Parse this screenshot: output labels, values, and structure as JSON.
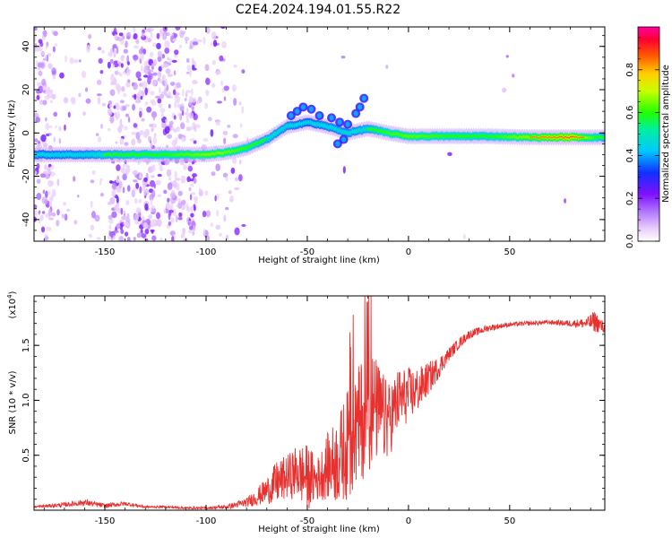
{
  "title": "C2E4.2024.194.01.55.R22",
  "colorbar": {
    "label": "Normalized spectral amplitude",
    "ticks": [
      "0.0",
      "0.2",
      "0.4",
      "0.6",
      "0.8"
    ],
    "range": [
      0,
      1
    ]
  },
  "chart_data": [
    {
      "type": "heatmap",
      "xlabel": "Height of straight line (km)",
      "ylabel": "Frequency (Hz)",
      "xlim": [
        -185,
        97
      ],
      "ylim": [
        -50,
        49
      ],
      "xticks": [
        "-150",
        "-100",
        "-50",
        "0",
        "50"
      ],
      "yticks": [
        "-40",
        "-20",
        "0",
        "20",
        "40"
      ],
      "ridge": [
        {
          "x": -185,
          "f": -10,
          "a": 0.42
        },
        {
          "x": -160,
          "f": -10,
          "a": 0.45
        },
        {
          "x": -140,
          "f": -10,
          "a": 0.55
        },
        {
          "x": -120,
          "f": -10,
          "a": 0.6
        },
        {
          "x": -100,
          "f": -10,
          "a": 0.72
        },
        {
          "x": -90,
          "f": -9,
          "a": 0.7
        },
        {
          "x": -80,
          "f": -7,
          "a": 0.6
        },
        {
          "x": -70,
          "f": -3,
          "a": 0.5
        },
        {
          "x": -60,
          "f": 3,
          "a": 0.45
        },
        {
          "x": -50,
          "f": 5,
          "a": 0.4
        },
        {
          "x": -40,
          "f": 3,
          "a": 0.45
        },
        {
          "x": -30,
          "f": 0,
          "a": 0.45
        },
        {
          "x": -20,
          "f": 2,
          "a": 0.5
        },
        {
          "x": -10,
          "f": 0,
          "a": 0.62
        },
        {
          "x": 0,
          "f": -1.5,
          "a": 0.68
        },
        {
          "x": 20,
          "f": -1.5,
          "a": 0.6
        },
        {
          "x": 40,
          "f": -1.5,
          "a": 0.58
        },
        {
          "x": 60,
          "f": -2,
          "a": 0.75
        },
        {
          "x": 80,
          "f": -2,
          "a": 0.92
        },
        {
          "x": 97,
          "f": -2,
          "a": 0.5
        }
      ]
    },
    {
      "type": "line",
      "xlabel": "Height of straight line (km)",
      "ylabel": "SNR (10 * v/v)",
      "yscale_label": "(x10",
      "yscale_exp": "4",
      "xlim": [
        -185,
        97
      ],
      "ylim": [
        0,
        1.95
      ],
      "xticks": [
        "-150",
        "-100",
        "-50",
        "0",
        "50"
      ],
      "yticks": [
        "0.5",
        "1.0",
        "1.5"
      ],
      "series": [
        {
          "color": "#e8312f",
          "x": [
            -185,
            -170,
            -160,
            -150,
            -140,
            -130,
            -120,
            -110,
            -100,
            -90,
            -80,
            -75,
            -70,
            -65,
            -60,
            -55,
            -50,
            -45,
            -40,
            -35,
            -30,
            -25,
            -20,
            -15,
            -10,
            -5,
            0,
            5,
            10,
            15,
            20,
            25,
            30,
            40,
            50,
            60,
            70,
            80,
            88,
            92,
            97
          ],
          "y": [
            0.03,
            0.05,
            0.07,
            0.04,
            0.06,
            0.03,
            0.03,
            0.02,
            0.02,
            0.03,
            0.07,
            0.12,
            0.18,
            0.25,
            0.3,
            0.35,
            0.3,
            0.28,
            0.4,
            0.45,
            0.6,
            0.75,
            0.95,
            0.9,
            0.8,
            1.0,
            1.05,
            1.1,
            1.2,
            1.3,
            1.42,
            1.52,
            1.6,
            1.66,
            1.69,
            1.7,
            1.71,
            1.7,
            1.7,
            1.72,
            1.65
          ],
          "noise": [
            0.01,
            0.02,
            0.03,
            0.02,
            0.02,
            0.01,
            0.01,
            0.01,
            0.01,
            0.02,
            0.04,
            0.08,
            0.12,
            0.2,
            0.2,
            0.25,
            0.3,
            0.2,
            0.3,
            0.4,
            0.5,
            0.55,
            0.6,
            0.45,
            0.35,
            0.3,
            0.25,
            0.2,
            0.15,
            0.1,
            0.06,
            0.05,
            0.04,
            0.03,
            0.02,
            0.02,
            0.02,
            0.03,
            0.05,
            0.1,
            0.05
          ]
        }
      ]
    }
  ]
}
